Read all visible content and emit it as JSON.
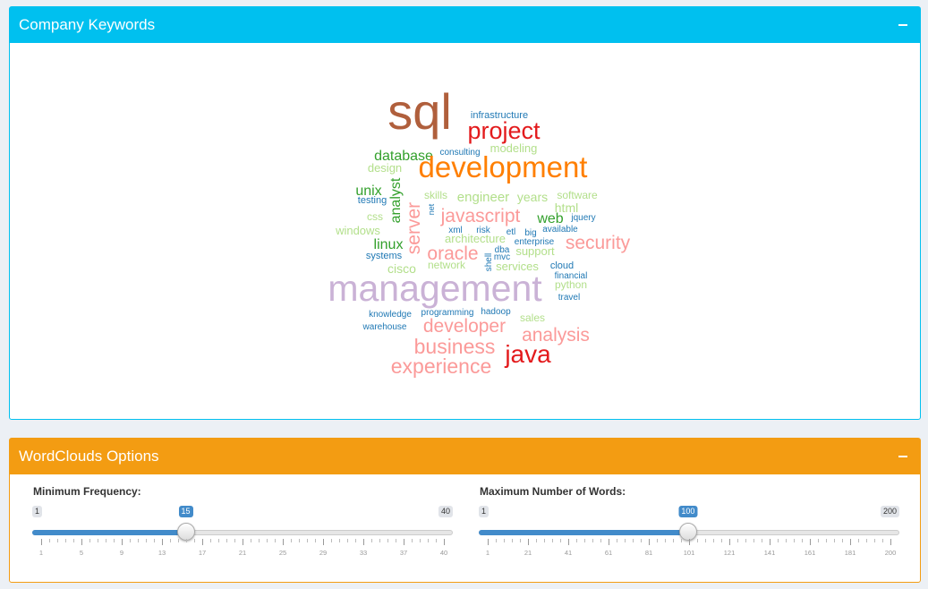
{
  "keywords_box": {
    "title": "Company Keywords",
    "collapse_icon": "minus-icon",
    "header_color": "#00c0ef"
  },
  "wordcloud": {
    "words": [
      {
        "text": "sql",
        "color": "#b05f3c"
      },
      {
        "text": "project",
        "color": "#e31a1c"
      },
      {
        "text": "infrastructure",
        "color": "#1f78b4"
      },
      {
        "text": "database",
        "color": "#33a02c"
      },
      {
        "text": "consulting",
        "color": "#1f78b4"
      },
      {
        "text": "modeling",
        "color": "#b2df8a"
      },
      {
        "text": "design",
        "color": "#b2df8a"
      },
      {
        "text": "development",
        "color": "#ff7f00"
      },
      {
        "text": "unix",
        "color": "#33a02c"
      },
      {
        "text": "testing",
        "color": "#1f78b4"
      },
      {
        "text": "analyst",
        "color": "#33a02c"
      },
      {
        "text": "skills",
        "color": "#b2df8a"
      },
      {
        "text": "engineer",
        "color": "#b2df8a"
      },
      {
        "text": "years",
        "color": "#b2df8a"
      },
      {
        "text": "software",
        "color": "#b2df8a"
      },
      {
        "text": "html",
        "color": "#b2df8a"
      },
      {
        "text": "css",
        "color": "#b2df8a"
      },
      {
        "text": "server",
        "color": "#fb9a99"
      },
      {
        "text": "net",
        "color": "#1f78b4"
      },
      {
        "text": "javascript",
        "color": "#fb9a99"
      },
      {
        "text": "web",
        "color": "#33a02c"
      },
      {
        "text": "jquery",
        "color": "#1f78b4"
      },
      {
        "text": "windows",
        "color": "#b2df8a"
      },
      {
        "text": "xml",
        "color": "#1f78b4"
      },
      {
        "text": "risk",
        "color": "#1f78b4"
      },
      {
        "text": "etl",
        "color": "#1f78b4"
      },
      {
        "text": "big",
        "color": "#1f78b4"
      },
      {
        "text": "available",
        "color": "#1f78b4"
      },
      {
        "text": "linux",
        "color": "#33a02c"
      },
      {
        "text": "architecture",
        "color": "#b2df8a"
      },
      {
        "text": "enterprise",
        "color": "#1f78b4"
      },
      {
        "text": "security",
        "color": "#fb9a99"
      },
      {
        "text": "systems",
        "color": "#1f78b4"
      },
      {
        "text": "oracle",
        "color": "#fb9a99"
      },
      {
        "text": "dba",
        "color": "#1f78b4"
      },
      {
        "text": "mvc",
        "color": "#1f78b4"
      },
      {
        "text": "shell",
        "color": "#1f78b4"
      },
      {
        "text": "support",
        "color": "#b2df8a"
      },
      {
        "text": "cisco",
        "color": "#b2df8a"
      },
      {
        "text": "network",
        "color": "#b2df8a"
      },
      {
        "text": "services",
        "color": "#b2df8a"
      },
      {
        "text": "cloud",
        "color": "#1f78b4"
      },
      {
        "text": "financial",
        "color": "#1f78b4"
      },
      {
        "text": "management",
        "color": "#cab2d6"
      },
      {
        "text": "python",
        "color": "#b2df8a"
      },
      {
        "text": "travel",
        "color": "#1f78b4"
      },
      {
        "text": "knowledge",
        "color": "#1f78b4"
      },
      {
        "text": "programming",
        "color": "#1f78b4"
      },
      {
        "text": "hadoop",
        "color": "#1f78b4"
      },
      {
        "text": "warehouse",
        "color": "#1f78b4"
      },
      {
        "text": "developer",
        "color": "#fb9a99"
      },
      {
        "text": "sales",
        "color": "#b2df8a"
      },
      {
        "text": "analysis",
        "color": "#fb9a99"
      },
      {
        "text": "business",
        "color": "#fb9a99"
      },
      {
        "text": "java",
        "color": "#e31a1c"
      },
      {
        "text": "experience",
        "color": "#fb9a99"
      }
    ]
  },
  "options_box": {
    "title": "WordClouds Options",
    "collapse_icon": "minus-icon",
    "header_color": "#f39c12"
  },
  "min_freq": {
    "label": "Minimum Frequency:",
    "min": 1,
    "max": 40,
    "value": 15,
    "min_label": "1",
    "max_label": "40",
    "value_label": "15",
    "ticks": [
      "1",
      "5",
      "9",
      "13",
      "17",
      "21",
      "25",
      "29",
      "33",
      "37",
      "40"
    ]
  },
  "max_words": {
    "label": "Maximum Number of Words:",
    "min": 1,
    "max": 200,
    "value": 100,
    "min_label": "1",
    "max_label": "200",
    "value_label": "100",
    "ticks": [
      "1",
      "21",
      "41",
      "61",
      "81",
      "101",
      "121",
      "141",
      "161",
      "181",
      "200"
    ]
  }
}
